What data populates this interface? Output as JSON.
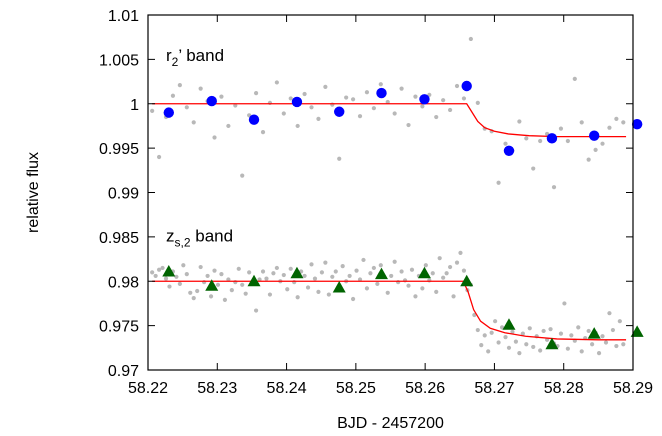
{
  "chart_data": {
    "type": "scatter",
    "xlabel": "BJD - 2457200",
    "ylabel": "relative flux",
    "xlim": [
      58.22,
      58.29
    ],
    "ylim": [
      0.97,
      1.01
    ],
    "x_ticks": [
      58.22,
      58.23,
      58.24,
      58.25,
      58.26,
      58.27,
      58.28,
      58.29
    ],
    "x_tick_labels": [
      "58.22",
      "58.23",
      "58.24",
      "58.25",
      "58.26",
      "58.27",
      "58.28",
      "58.29"
    ],
    "y_ticks": [
      0.97,
      0.975,
      0.98,
      0.985,
      0.99,
      0.995,
      1.0,
      1.005,
      1.01
    ],
    "y_tick_labels": [
      "0.97",
      "0.975",
      "0.98",
      "0.985",
      "0.99",
      "0.995",
      "1",
      "1.005",
      "1.01"
    ],
    "grid": false,
    "annotations": [
      {
        "text": "r",
        "sub": "2",
        "suffix": "’ band",
        "x": 58.2226,
        "y": 1.0048
      },
      {
        "text": "z",
        "sub": "s,2",
        "suffix": " band",
        "x": 58.2226,
        "y": 0.9845
      }
    ],
    "colors": {
      "raw": "#b8b8b8",
      "binned_r": "#0000ff",
      "binned_z": "#006400",
      "model": "#ff0000"
    },
    "series": [
      {
        "marker": "dot",
        "color": "#b8b8b8",
        "x": [
          58.2206,
          58.2216,
          58.2226,
          58.2236,
          58.2246,
          58.2256,
          58.2266,
          58.2276,
          58.2286,
          58.2296,
          58.2306,
          58.2316,
          58.2326,
          58.2336,
          58.2346,
          58.2356,
          58.2366,
          58.2376,
          58.2386,
          58.2396,
          58.2406,
          58.2416,
          58.2426,
          58.2436,
          58.2446,
          58.2456,
          58.2466,
          58.2476,
          58.2486,
          58.2496,
          58.2506,
          58.2516,
          58.2526,
          58.2536,
          58.2546,
          58.2556,
          58.2566,
          58.2576,
          58.2586,
          58.2596,
          58.2606,
          58.2616,
          58.2626,
          58.2636,
          58.2646,
          58.2656,
          58.2666,
          58.2676,
          58.2686,
          58.2696,
          58.2706,
          58.2716,
          58.2726,
          58.2736,
          58.2746,
          58.2756,
          58.2766,
          58.2776,
          58.2786,
          58.2796,
          58.2806,
          58.2816,
          58.2826,
          58.2836,
          58.2846,
          58.2856,
          58.2866,
          58.2876,
          58.2886
        ],
        "y": [
          0.9992,
          0.994,
          0.9985,
          1.0009,
          1.0021,
          0.9996,
          0.9979,
          1.0017,
          1.0003,
          0.9962,
          1.0008,
          0.9975,
          0.9998,
          0.9919,
          0.9987,
          1.0012,
          0.9968,
          1.0001,
          1.0024,
          0.9989,
          1.0006,
          0.9975,
          1.0011,
          0.9996,
          0.9983,
          1.0019,
          0.9999,
          0.9938,
          1.0007,
          1.0005,
          0.9986,
          1.0013,
          0.9995,
          1.0022,
          1.0002,
          0.9989,
          1.0017,
          0.9976,
          1.0008,
          0.9997,
          1.001,
          0.9985,
          1.0004,
          0.9993,
          1.002,
          1.0006,
          1.0073,
          1.0001,
          0.9972,
          0.9969,
          0.9911,
          0.9955,
          0.9947,
          0.998,
          0.9961,
          0.9927,
          0.9958,
          0.9966,
          0.9906,
          0.9972,
          0.9958,
          1.0028,
          0.9979,
          0.9937,
          0.9948,
          0.9955,
          0.9973,
          0.9983,
          0.9979
        ]
      },
      {
        "marker": "dot",
        "color": "#b8b8b8",
        "x": [
          58.2206,
          58.2211,
          58.2216,
          58.2221,
          58.2226,
          58.2231,
          58.2236,
          58.2241,
          58.2246,
          58.2251,
          58.2256,
          58.2261,
          58.2266,
          58.2271,
          58.2276,
          58.2281,
          58.2286,
          58.2291,
          58.2296,
          58.2301,
          58.2306,
          58.2311,
          58.2316,
          58.2321,
          58.2326,
          58.2331,
          58.2336,
          58.2341,
          58.2346,
          58.2351,
          58.2356,
          58.2361,
          58.2366,
          58.2371,
          58.2376,
          58.2381,
          58.2386,
          58.2391,
          58.2396,
          58.2401,
          58.2406,
          58.2411,
          58.2416,
          58.2421,
          58.2426,
          58.2431,
          58.2436,
          58.2441,
          58.2446,
          58.2451,
          58.2456,
          58.2461,
          58.2466,
          58.2471,
          58.2476,
          58.2481,
          58.2486,
          58.2491,
          58.2496,
          58.2501,
          58.2506,
          58.2511,
          58.2516,
          58.2521,
          58.2526,
          58.2531,
          58.2536,
          58.2541,
          58.2546,
          58.2551,
          58.2556,
          58.2561,
          58.2566,
          58.2571,
          58.2576,
          58.2581,
          58.2586,
          58.2591,
          58.2596,
          58.2601,
          58.2606,
          58.2611,
          58.2616,
          58.2621,
          58.2626,
          58.2631,
          58.2636,
          58.2641,
          58.2646,
          58.2651,
          58.2656,
          58.2661,
          58.2666,
          58.2671,
          58.2676,
          58.2681,
          58.2686,
          58.2691,
          58.2696,
          58.2701,
          58.2706,
          58.2711,
          58.2716,
          58.2721,
          58.2726,
          58.2731,
          58.2736,
          58.2741,
          58.2746,
          58.2751,
          58.2756,
          58.2761,
          58.2766,
          58.2771,
          58.2776,
          58.2781,
          58.2786,
          58.2791,
          58.2796,
          58.2801,
          58.2806,
          58.2811,
          58.2816,
          58.2821,
          58.2826,
          58.2831,
          58.2836,
          58.2841,
          58.2846,
          58.2851,
          58.2856,
          58.2861,
          58.2866,
          58.2871,
          58.2876,
          58.2881,
          58.2886
        ],
        "y": [
          0.981,
          0.9806,
          0.9813,
          0.9815,
          0.9803,
          0.9794,
          0.9811,
          0.9805,
          0.9797,
          0.9818,
          0.9808,
          0.9787,
          0.9781,
          0.9789,
          0.9816,
          0.9799,
          0.9806,
          0.9783,
          0.9812,
          0.9796,
          0.9808,
          0.9779,
          0.9802,
          0.979,
          0.9799,
          0.9814,
          0.9796,
          0.9786,
          0.981,
          0.9798,
          0.9767,
          0.9802,
          0.9811,
          0.9803,
          0.9785,
          0.9809,
          0.9815,
          0.98,
          0.9807,
          0.9791,
          0.9814,
          0.9799,
          0.9782,
          0.9811,
          0.9806,
          0.9793,
          0.9819,
          0.9803,
          0.9788,
          0.981,
          0.9821,
          0.9785,
          0.9805,
          0.9811,
          0.9794,
          0.9817,
          0.98,
          0.9806,
          0.978,
          0.9812,
          0.9802,
          0.9824,
          0.9792,
          0.9809,
          0.9815,
          0.9797,
          0.9818,
          0.9805,
          0.9787,
          0.9806,
          0.9822,
          0.9799,
          0.9811,
          0.9801,
          0.9795,
          0.9813,
          0.9783,
          0.9806,
          0.9792,
          0.9818,
          0.9801,
          0.9809,
          0.9788,
          0.9826,
          0.9804,
          0.9809,
          0.9816,
          0.9783,
          0.9821,
          0.9832,
          0.9812,
          0.979,
          0.9796,
          0.9762,
          0.9745,
          0.9728,
          0.9739,
          0.9721,
          0.9742,
          0.9755,
          0.9731,
          0.9748,
          0.9737,
          0.9725,
          0.9743,
          0.9732,
          0.9719,
          0.9741,
          0.9729,
          0.9747,
          0.9726,
          0.9738,
          0.9722,
          0.9744,
          0.9734,
          0.9746,
          0.973,
          0.9727,
          0.9741,
          0.9775,
          0.9724,
          0.9739,
          0.9733,
          0.9748,
          0.9721,
          0.9736,
          0.9744,
          0.9729,
          0.9742,
          0.9719,
          0.9738,
          0.9731,
          0.9764,
          0.9745,
          0.9727,
          0.9755,
          0.9729
        ]
      },
      {
        "marker": "circle",
        "color": "#0000ff",
        "x": [
          58.223,
          58.2292,
          58.2353,
          58.2415,
          58.2476,
          58.2537,
          58.2599,
          58.266,
          58.2721,
          58.2783,
          58.2844,
          58.2906
        ],
        "y": [
          0.999,
          1.0003,
          0.9982,
          1.0002,
          0.9991,
          1.0012,
          1.0005,
          1.002,
          0.9947,
          0.9961,
          0.9964,
          0.9977
        ]
      },
      {
        "marker": "triangle",
        "color": "#006400",
        "x": [
          58.223,
          58.2292,
          58.2353,
          58.2415,
          58.2476,
          58.2537,
          58.2599,
          58.266,
          58.2721,
          58.2783,
          58.2844,
          58.2906
        ],
        "y": [
          0.9811,
          0.9795,
          0.98,
          0.9809,
          0.9793,
          0.9808,
          0.9809,
          0.98,
          0.9751,
          0.9729,
          0.9741,
          0.9743
        ]
      },
      {
        "marker": "line",
        "color": "#ff0000",
        "x": [
          58.2206,
          58.266,
          58.2668,
          58.2676,
          58.2686,
          58.27,
          58.272,
          58.275,
          58.279,
          58.285,
          58.289
        ],
        "y": [
          1.0,
          1.0,
          0.999,
          0.998,
          0.9973,
          0.9969,
          0.9966,
          0.9964,
          0.9963,
          0.9963,
          0.9963
        ]
      },
      {
        "marker": "line",
        "color": "#ff0000",
        "x": [
          58.2206,
          58.2655,
          58.2662,
          58.267,
          58.268,
          58.2694,
          58.2715,
          58.2745,
          58.279,
          58.285,
          58.289
        ],
        "y": [
          0.98,
          0.98,
          0.9788,
          0.9768,
          0.9755,
          0.9747,
          0.9742,
          0.9738,
          0.9735,
          0.9734,
          0.9734
        ]
      }
    ]
  }
}
